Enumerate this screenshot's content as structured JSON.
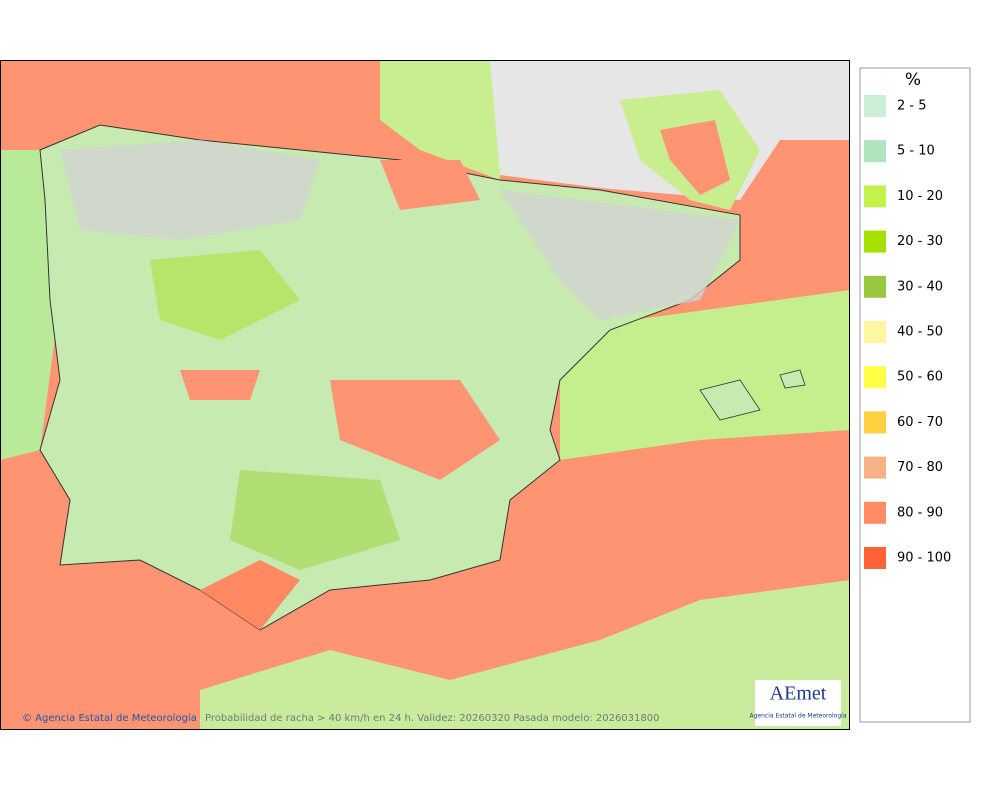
{
  "legend": {
    "title": "%",
    "items": [
      {
        "label": "2 - 5",
        "color": "#cdeed6"
      },
      {
        "label": "5 - 10",
        "color": "#aee4be"
      },
      {
        "label": "10 - 20",
        "color": "#c4f24a"
      },
      {
        "label": "20 - 30",
        "color": "#a6e000"
      },
      {
        "label": "30 - 40",
        "color": "#98c83e"
      },
      {
        "label": "40 - 50",
        "color": "#fff7a0"
      },
      {
        "label": "50 - 60",
        "color": "#ffff44"
      },
      {
        "label": "60 - 70",
        "color": "#ffd040"
      },
      {
        "label": "70 - 80",
        "color": "#f6b284"
      },
      {
        "label": "80 - 90",
        "color": "#ff8c62"
      },
      {
        "label": "90 - 100",
        "color": "#ff6234"
      }
    ]
  },
  "footer": {
    "copyright": "© Agencia Estatal de Meteorología",
    "caption": "Probabilidad de racha > 40 km/h en 24 h. Validez: 20260320 Pasada modelo: 2026031800"
  },
  "logo": {
    "name": "AEmet",
    "subtitle": "Agencia Estatal de Meteorología"
  }
}
